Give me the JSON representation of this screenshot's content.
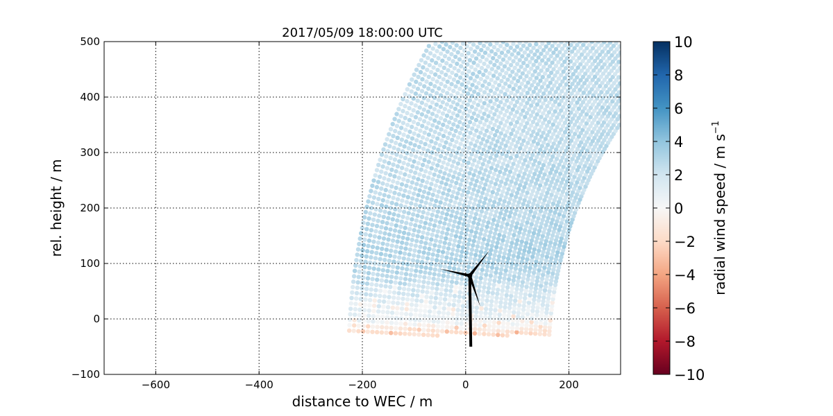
{
  "chart_data": {
    "type": "scatter",
    "title": "2017/05/09 18:00:00 UTC",
    "xlabel": "distance to WEC / m",
    "ylabel": "rel. height / m",
    "xlim": [
      -700,
      300
    ],
    "ylim": [
      -100,
      500
    ],
    "x_ticks": [
      -600,
      -400,
      -200,
      0,
      200
    ],
    "x_tick_labels": [
      "−600",
      "−400",
      "−200",
      "0",
      "200"
    ],
    "y_ticks": [
      -100,
      0,
      100,
      200,
      300,
      400,
      500
    ],
    "y_tick_labels": [
      "−100",
      "0",
      "100",
      "200",
      "300",
      "400",
      "500"
    ],
    "grid": true,
    "colormap": "RdBu",
    "colorbar": {
      "label": "radial wind speed / m s",
      "label_superscript": "−1",
      "range": [
        -10,
        10
      ],
      "ticks": [
        10,
        8,
        6,
        4,
        2,
        0,
        -2,
        -4,
        -6,
        -8,
        -10
      ],
      "tick_labels": [
        "10",
        "8",
        "6",
        "4",
        "2",
        "0",
        "−2",
        "−4",
        "−6",
        "−8",
        "−10"
      ]
    },
    "scan": {
      "geometry": "RHI sector scan, arcs of constant range around lidar",
      "lidar_origin": [
        900,
        -80
      ],
      "range_min": 740,
      "range_max": 1130,
      "range_step": 9,
      "elevation_min_deg": 2.5,
      "elevation_max_deg": 46,
      "elevation_step_deg": 0.5,
      "clip_x": [
        -700,
        300
      ],
      "clip_y": [
        -30,
        500
      ]
    },
    "wind_profile": [
      {
        "height": -25,
        "speed": -1.6
      },
      {
        "height": -10,
        "speed": 0.0
      },
      {
        "height": 0,
        "speed": 0.6
      },
      {
        "height": 30,
        "speed": 1.4
      },
      {
        "height": 80,
        "speed": 2.6
      },
      {
        "height": 120,
        "speed": 3.0
      },
      {
        "height": 200,
        "speed": 2.6
      },
      {
        "height": 350,
        "speed": 2.4
      },
      {
        "height": 500,
        "speed": 2.5
      }
    ],
    "turbine": {
      "label": "WEC",
      "hub": [
        8,
        78
      ],
      "tower_base": [
        10,
        -50
      ],
      "blade_angles_deg": [
        50,
        168,
        290
      ],
      "blade_length": 60
    }
  }
}
